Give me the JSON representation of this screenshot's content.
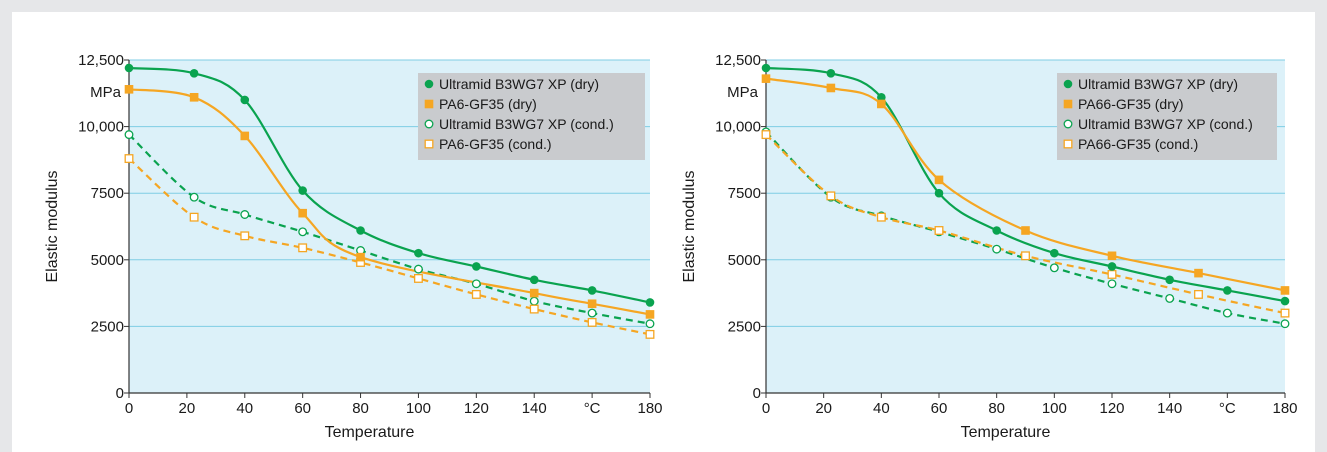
{
  "colors": {
    "plot_bg": "#dcf1f9",
    "grid": "#7fcde4",
    "green": "#0aa34f",
    "orange": "#f5a623",
    "legend_bg": "#c9cbce"
  },
  "chart_data": [
    {
      "type": "line",
      "xlabel": "Temperature",
      "ylabel": "Elastic modulus",
      "y_unit_label": "MPa",
      "xlim": [
        0,
        180
      ],
      "ylim": [
        0,
        12500
      ],
      "x_ticks": [
        "0",
        "20",
        "40",
        "60",
        "80",
        "100",
        "120",
        "140",
        "°C",
        "180"
      ],
      "y_ticks": [
        "0",
        "2500",
        "5000",
        "7500",
        "10,000",
        "12,500"
      ],
      "grid": true,
      "legend_position": "top-right",
      "series": [
        {
          "name": "Ultramid B3WG7 XP (dry)",
          "color": "green",
          "marker": "filled-circle",
          "dashed": false,
          "x": [
            0,
            22.5,
            40,
            60,
            80,
            100,
            120,
            140,
            160,
            180
          ],
          "y": [
            12200,
            12000,
            11000,
            7600,
            6100,
            5250,
            4750,
            4250,
            3850,
            3400
          ]
        },
        {
          "name": "PA6-GF35 (dry)",
          "color": "orange",
          "marker": "filled-square",
          "dashed": false,
          "x": [
            0,
            22.5,
            40,
            60,
            80,
            140,
            160,
            180
          ],
          "y": [
            11400,
            11100,
            9650,
            6750,
            5100,
            3750,
            3350,
            2950
          ]
        },
        {
          "name": "Ultramid B3WG7 XP (cond.)",
          "color": "green",
          "marker": "open-circle",
          "dashed": true,
          "x": [
            0,
            22.5,
            40,
            60,
            80,
            100,
            120,
            140,
            160,
            180
          ],
          "y": [
            9700,
            7350,
            6700,
            6050,
            5350,
            4650,
            4100,
            3450,
            3000,
            2600
          ]
        },
        {
          "name": "PA6-GF35 (cond.)",
          "color": "orange",
          "marker": "open-square",
          "dashed": true,
          "x": [
            0,
            22.5,
            40,
            60,
            80,
            100,
            120,
            140,
            160,
            180
          ],
          "y": [
            8800,
            6600,
            5900,
            5450,
            4900,
            4300,
            3700,
            3150,
            2650,
            2200
          ]
        }
      ]
    },
    {
      "type": "line",
      "xlabel": "Temperature",
      "ylabel": "Elastic modulus",
      "y_unit_label": "MPa",
      "xlim": [
        0,
        180
      ],
      "ylim": [
        0,
        12500
      ],
      "x_ticks": [
        "0",
        "20",
        "40",
        "60",
        "80",
        "100",
        "120",
        "140",
        "°C",
        "180"
      ],
      "y_ticks": [
        "0",
        "2500",
        "5000",
        "7500",
        "10,000",
        "12,500"
      ],
      "grid": true,
      "legend_position": "top-right",
      "series": [
        {
          "name": "Ultramid B3WG7 XP (dry)",
          "color": "green",
          "marker": "filled-circle",
          "dashed": false,
          "x": [
            0,
            22.5,
            40,
            60,
            80,
            100,
            120,
            140,
            160,
            180
          ],
          "y": [
            12200,
            12000,
            11100,
            7500,
            6100,
            5250,
            4750,
            4250,
            3850,
            3450
          ]
        },
        {
          "name": "PA66-GF35 (dry)",
          "color": "orange",
          "marker": "filled-square",
          "dashed": false,
          "x": [
            0,
            22.5,
            40,
            60,
            90,
            120,
            150,
            180
          ],
          "y": [
            11800,
            11450,
            10850,
            8000,
            6100,
            5150,
            4500,
            3850
          ]
        },
        {
          "name": "Ultramid B3WG7 XP (cond.)",
          "color": "green",
          "marker": "open-circle",
          "dashed": true,
          "x": [
            0,
            22.5,
            40,
            60,
            80,
            100,
            120,
            140,
            160,
            180
          ],
          "y": [
            9800,
            7350,
            6650,
            6050,
            5400,
            4700,
            4100,
            3550,
            3000,
            2600
          ]
        },
        {
          "name": "PA66-GF35 (cond.)",
          "color": "orange",
          "marker": "open-square",
          "dashed": true,
          "x": [
            0,
            22.5,
            40,
            60,
            90,
            120,
            150,
            180
          ],
          "y": [
            9700,
            7400,
            6600,
            6100,
            5150,
            4450,
            3700,
            3000
          ]
        }
      ]
    }
  ]
}
